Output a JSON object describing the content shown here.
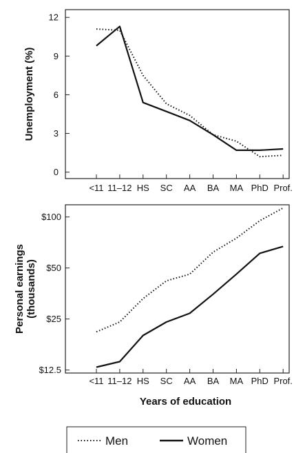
{
  "chart_data": [
    {
      "type": "line",
      "ylabel": "Unemployment (%)",
      "xlabel": "",
      "categories": [
        "<11",
        "11–12",
        "HS",
        "SC",
        "AA",
        "BA",
        "MA",
        "PhD",
        "Prof."
      ],
      "yticks": [
        "0",
        "3",
        "6",
        "9",
        "12"
      ],
      "ylim": [
        -0.5,
        12.6
      ],
      "grid": false,
      "series": [
        {
          "name": "Men",
          "style": "dotted",
          "values": [
            11.1,
            11.0,
            7.5,
            5.3,
            4.4,
            2.9,
            2.4,
            1.2,
            1.3
          ]
        },
        {
          "name": "Women",
          "style": "solid",
          "values": [
            9.8,
            11.3,
            5.4,
            4.7,
            4.0,
            2.9,
            1.7,
            1.7,
            1.8
          ]
        }
      ]
    },
    {
      "type": "line",
      "ylabel": "Personal earnings (thousands)",
      "xlabel": "Years of education",
      "scale": "log",
      "categories": [
        "<11",
        "11–12",
        "HS",
        "SC",
        "AA",
        "BA",
        "MA",
        "PhD",
        "Prof."
      ],
      "yticks": [
        "$12.5",
        "$25",
        "$50",
        "$100"
      ],
      "ytick_values": [
        12.5,
        25,
        50,
        100
      ],
      "ylim": [
        12.0,
        118
      ],
      "grid": false,
      "series": [
        {
          "name": "Men",
          "style": "dotted",
          "values": [
            21,
            24,
            33,
            42,
            46,
            62,
            75,
            95,
            113
          ]
        },
        {
          "name": "Women",
          "style": "solid",
          "values": [
            13,
            14,
            20,
            24,
            27,
            35,
            46,
            61,
            67
          ]
        }
      ]
    }
  ],
  "legend": {
    "placement": "bottom",
    "items": [
      {
        "label": "Men",
        "style": "dotted"
      },
      {
        "label": "Women",
        "style": "solid"
      }
    ]
  },
  "colors": {
    "line": "#111111",
    "axis": "#222222",
    "background": "#ffffff"
  }
}
